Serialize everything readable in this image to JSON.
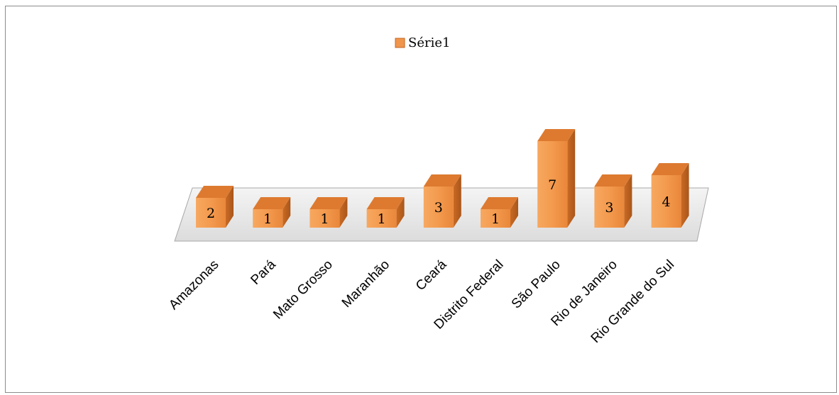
{
  "chart_data": {
    "type": "bar",
    "style": "3d-column",
    "categories": [
      "Amazonas",
      "Pará",
      "Mato Grosso",
      "Maranhão",
      "Ceará",
      "Distrito Federal",
      "São Paulo",
      "Rio de Janeiro",
      "Rio Grande do Sul"
    ],
    "series": [
      {
        "name": "Série1",
        "values": [
          2,
          1,
          1,
          1,
          3,
          1,
          7,
          3,
          4
        ]
      }
    ],
    "data_labels": true,
    "legend_position": "top",
    "grid": false,
    "colors": {
      "bar_front": "#f39a4e",
      "bar_side": "#c4641f",
      "bar_top": "#dd7a30",
      "floor": "#ededed",
      "legend_swatch": "#f0964c"
    }
  }
}
